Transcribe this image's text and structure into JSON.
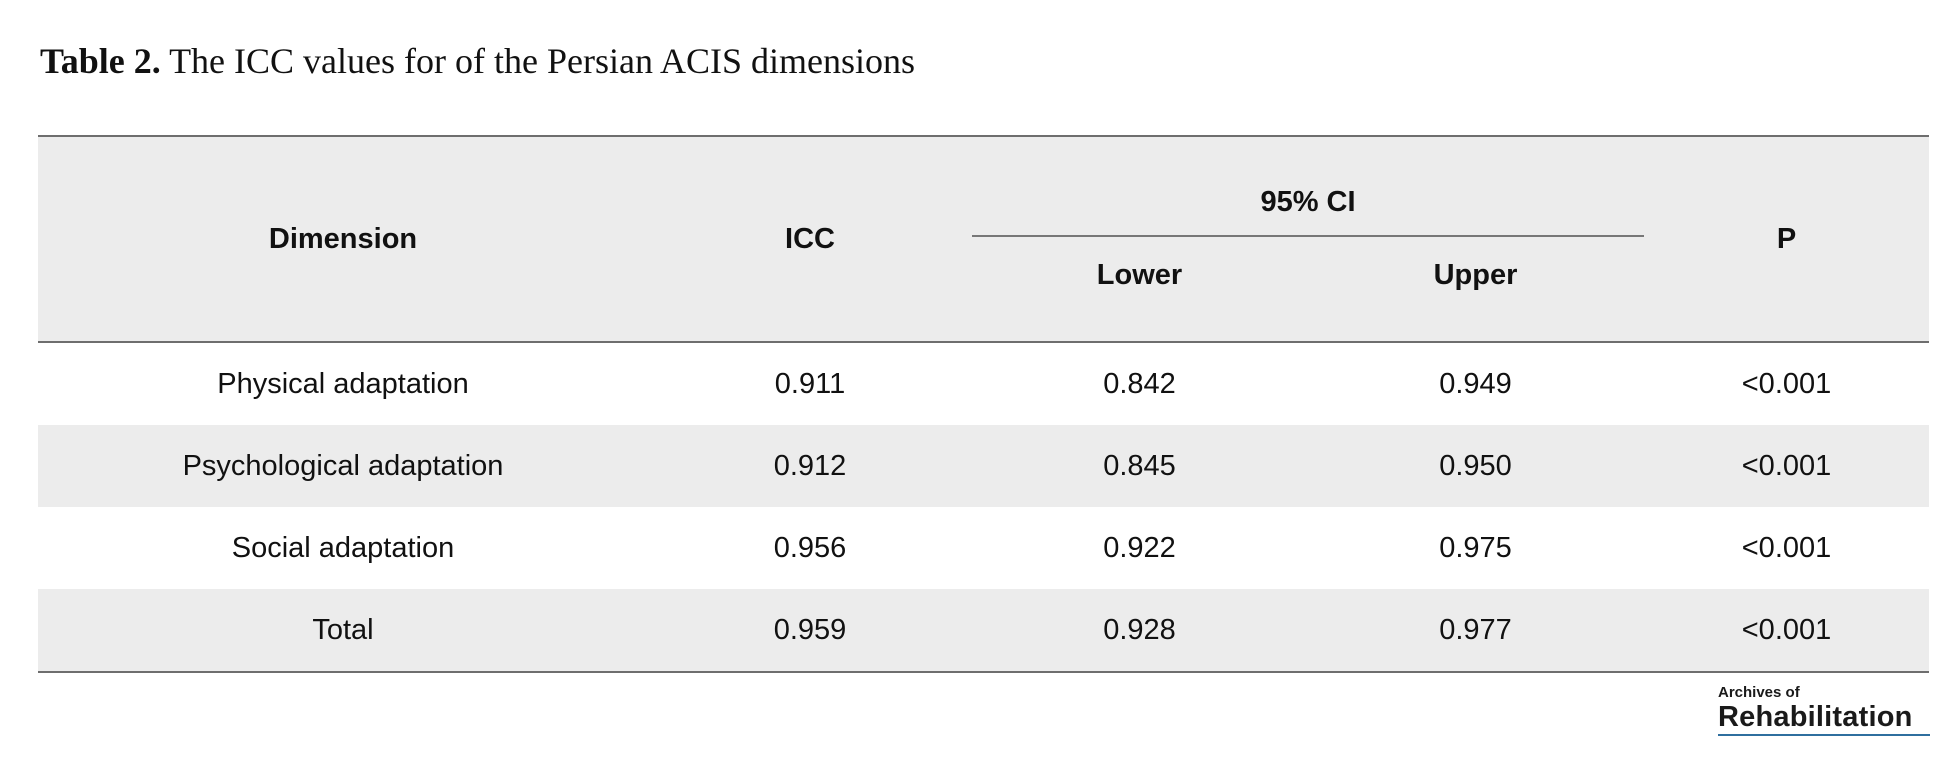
{
  "caption": {
    "label": "Table 2.",
    "text": " The ICC values for of the Persian ACIS dimensions"
  },
  "table": {
    "headers": {
      "dimension": "Dimension",
      "icc": "ICC",
      "ci_group": "95% CI",
      "lower": "Lower",
      "upper": "Upper",
      "p": "P"
    },
    "rows": [
      {
        "dimension": "Physical adaptation",
        "icc": "0.911",
        "lower": "0.842",
        "upper": "0.949",
        "p": "<0.001"
      },
      {
        "dimension": "Psychological adaptation",
        "icc": "0.912",
        "lower": "0.845",
        "upper": "0.950",
        "p": "<0.001"
      },
      {
        "dimension": "Social adaptation",
        "icc": "0.956",
        "lower": "0.922",
        "upper": "0.975",
        "p": "<0.001"
      },
      {
        "dimension": "Total",
        "icc": "0.959",
        "lower": "0.928",
        "upper": "0.977",
        "p": "<0.001"
      }
    ]
  },
  "logo": {
    "small_text": "Archives of",
    "big_text": "Rehabilitation"
  },
  "colors": {
    "header_bg": "#ececec",
    "stripe_bg": "#ececec",
    "rule": "#6e6e6e",
    "logo_underline": "#2f6f9f"
  }
}
